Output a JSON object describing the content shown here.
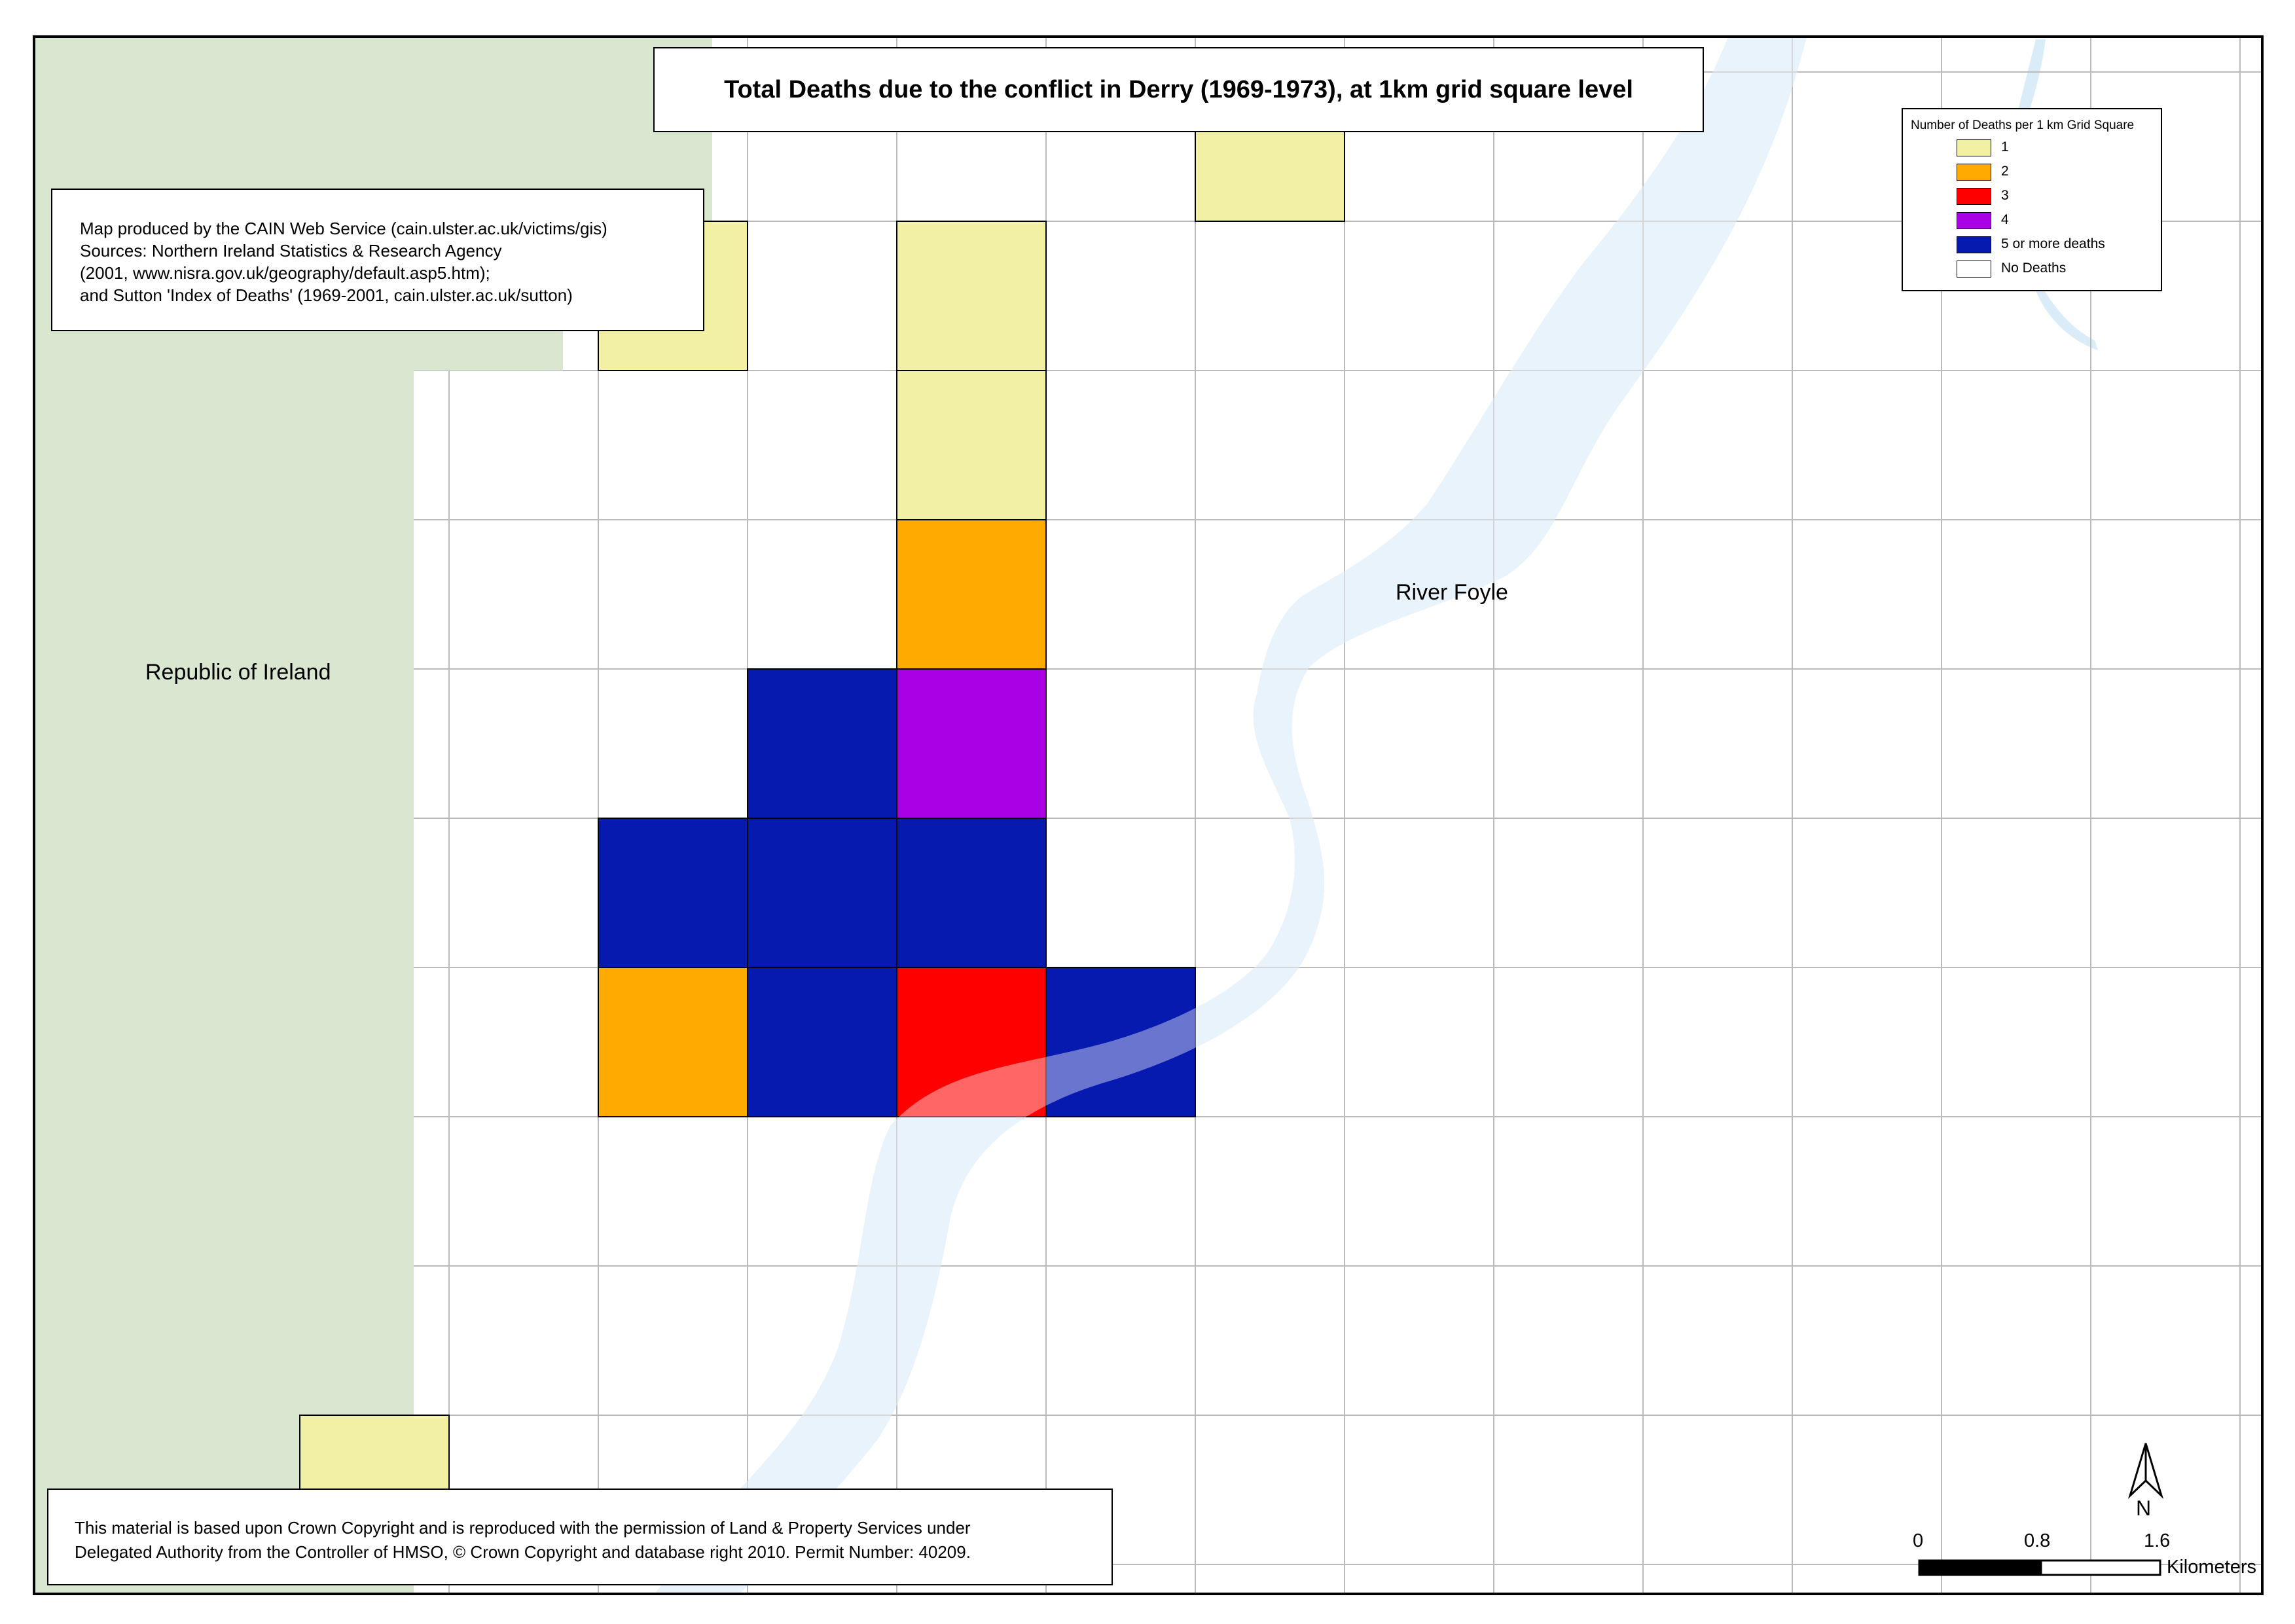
{
  "title": "Total Deaths due to the conflict in Derry (1969-1973), at 1km grid square level",
  "credits": [
    "Map produced by the CAIN Web Service (cain.ulster.ac.uk/victims/gis)",
    "Sources: Northern Ireland Statistics & Research Agency",
    "(2001, www.nisra.gov.uk/geography/default.asp5.htm);",
    "and Sutton 'Index of Deaths' (1969-2001, cain.ulster.ac.uk/sutton)"
  ],
  "copyright": [
    "This material is based upon Crown Copyright and is reproduced with the permission of Land & Property Services under",
    "Delegated Authority from the Controller of HMSO, © Crown Copyright and database right 2010. Permit Number: 40209."
  ],
  "legend": {
    "title": "Number of Deaths per 1 km Grid Square",
    "items": [
      {
        "label": "1",
        "color": "#F2F0A5"
      },
      {
        "label": "2",
        "color": "#FFAA00"
      },
      {
        "label": "3",
        "color": "#FF0000"
      },
      {
        "label": "4",
        "color": "#AA00E6"
      },
      {
        "label": "5 or more deaths",
        "color": "#061AAF"
      },
      {
        "label": "No Deaths",
        "color": "#FFFFFF"
      }
    ]
  },
  "labels": {
    "republic": "Republic of Ireland",
    "river": "River Foyle"
  },
  "north_arrow": {
    "label": "N"
  },
  "scale_bar": {
    "ticks": [
      "0",
      "0.8",
      "1.6"
    ],
    "units": "Kilometers"
  },
  "colors": {
    "republic_land": "#D9E7D1",
    "water": "#D9ECF8",
    "grid_line": "#BBBBBB"
  },
  "grid_squares": [
    {
      "col": 8,
      "row": 0,
      "deaths": 1
    },
    {
      "col": 4,
      "row": 1,
      "deaths": 1
    },
    {
      "col": 6,
      "row": 1,
      "deaths": 1
    },
    {
      "col": 6,
      "row": 2,
      "deaths": 1
    },
    {
      "col": 6,
      "row": 3,
      "deaths": 2
    },
    {
      "col": 5,
      "row": 4,
      "deaths": "5 or more"
    },
    {
      "col": 6,
      "row": 4,
      "deaths": 4
    },
    {
      "col": 4,
      "row": 5,
      "deaths": "5 or more"
    },
    {
      "col": 5,
      "row": 5,
      "deaths": "5 or more"
    },
    {
      "col": 6,
      "row": 5,
      "deaths": "5 or more"
    },
    {
      "col": 4,
      "row": 6,
      "deaths": 2
    },
    {
      "col": 5,
      "row": 6,
      "deaths": "5 or more"
    },
    {
      "col": 6,
      "row": 6,
      "deaths": 3
    },
    {
      "col": 7,
      "row": 6,
      "deaths": "5 or more"
    },
    {
      "col": 2,
      "row": 9,
      "deaths": 1
    }
  ]
}
